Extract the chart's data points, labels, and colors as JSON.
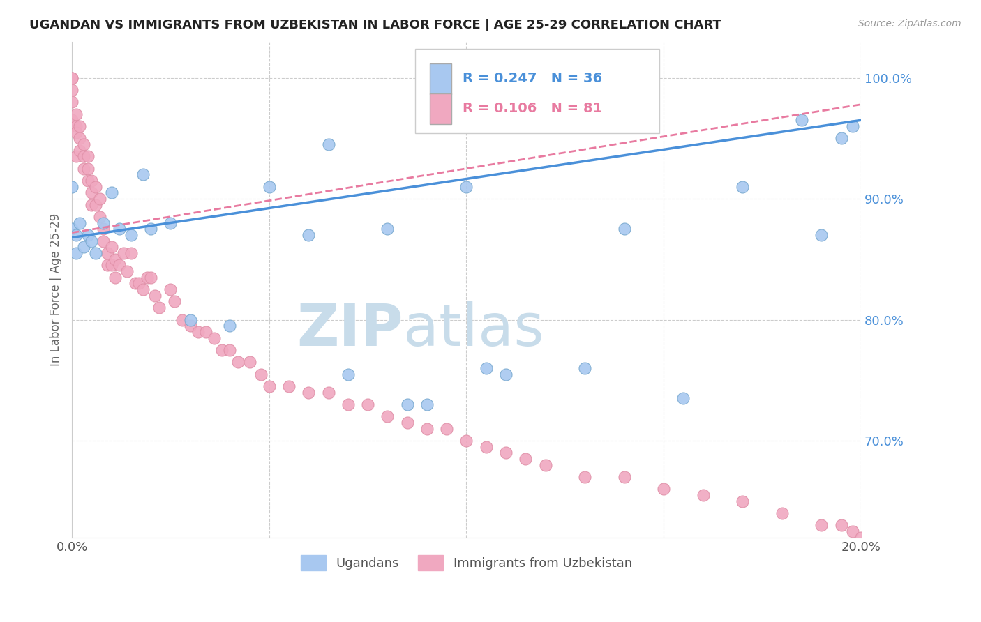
{
  "title": "UGANDAN VS IMMIGRANTS FROM UZBEKISTAN IN LABOR FORCE | AGE 25-29 CORRELATION CHART",
  "source": "Source: ZipAtlas.com",
  "ylabel": "In Labor Force | Age 25-29",
  "xlim": [
    0.0,
    0.2
  ],
  "ylim": [
    0.62,
    1.03
  ],
  "yticks": [
    0.7,
    0.8,
    0.9,
    1.0
  ],
  "ytick_labels": [
    "70.0%",
    "80.0%",
    "90.0%",
    "100.0%"
  ],
  "xticks": [
    0.0,
    0.05,
    0.1,
    0.15,
    0.2
  ],
  "xtick_labels": [
    "0.0%",
    "",
    "",
    "",
    "20.0%"
  ],
  "legend_entries": [
    {
      "label": "Ugandans",
      "color": "#a8c8f0",
      "R": 0.247,
      "N": 36
    },
    {
      "label": "Immigrants from Uzbekistan",
      "color": "#f0a8c0",
      "R": 0.106,
      "N": 81
    }
  ],
  "blue_scatter_x": [
    0.0,
    0.0,
    0.001,
    0.001,
    0.002,
    0.003,
    0.004,
    0.005,
    0.006,
    0.008,
    0.01,
    0.012,
    0.015,
    0.018,
    0.02,
    0.025,
    0.03,
    0.04,
    0.05,
    0.06,
    0.065,
    0.07,
    0.08,
    0.085,
    0.09,
    0.1,
    0.105,
    0.11,
    0.13,
    0.14,
    0.155,
    0.17,
    0.185,
    0.19,
    0.195,
    0.198
  ],
  "blue_scatter_y": [
    0.875,
    0.91,
    0.855,
    0.87,
    0.88,
    0.86,
    0.87,
    0.865,
    0.855,
    0.88,
    0.905,
    0.875,
    0.87,
    0.92,
    0.875,
    0.88,
    0.8,
    0.795,
    0.91,
    0.87,
    0.945,
    0.755,
    0.875,
    0.73,
    0.73,
    0.91,
    0.76,
    0.755,
    0.76,
    0.875,
    0.735,
    0.91,
    0.965,
    0.87,
    0.95,
    0.96
  ],
  "pink_scatter_x": [
    0.0,
    0.0,
    0.0,
    0.0,
    0.0,
    0.001,
    0.001,
    0.001,
    0.001,
    0.002,
    0.002,
    0.002,
    0.003,
    0.003,
    0.003,
    0.004,
    0.004,
    0.004,
    0.005,
    0.005,
    0.005,
    0.006,
    0.006,
    0.007,
    0.007,
    0.008,
    0.008,
    0.009,
    0.009,
    0.01,
    0.01,
    0.011,
    0.011,
    0.012,
    0.013,
    0.014,
    0.015,
    0.016,
    0.017,
    0.018,
    0.019,
    0.02,
    0.021,
    0.022,
    0.025,
    0.026,
    0.028,
    0.03,
    0.032,
    0.034,
    0.036,
    0.038,
    0.04,
    0.042,
    0.045,
    0.048,
    0.05,
    0.055,
    0.06,
    0.065,
    0.07,
    0.075,
    0.08,
    0.085,
    0.09,
    0.095,
    0.1,
    0.105,
    0.11,
    0.115,
    0.12,
    0.13,
    0.14,
    0.15,
    0.16,
    0.17,
    0.18,
    0.19,
    0.195,
    0.198,
    0.2
  ],
  "pink_scatter_y": [
    1.0,
    1.0,
    0.99,
    0.98,
    0.965,
    0.97,
    0.96,
    0.955,
    0.935,
    0.96,
    0.95,
    0.94,
    0.945,
    0.935,
    0.925,
    0.935,
    0.925,
    0.915,
    0.915,
    0.905,
    0.895,
    0.91,
    0.895,
    0.9,
    0.885,
    0.875,
    0.865,
    0.855,
    0.845,
    0.86,
    0.845,
    0.85,
    0.835,
    0.845,
    0.855,
    0.84,
    0.855,
    0.83,
    0.83,
    0.825,
    0.835,
    0.835,
    0.82,
    0.81,
    0.825,
    0.815,
    0.8,
    0.795,
    0.79,
    0.79,
    0.785,
    0.775,
    0.775,
    0.765,
    0.765,
    0.755,
    0.745,
    0.745,
    0.74,
    0.74,
    0.73,
    0.73,
    0.72,
    0.715,
    0.71,
    0.71,
    0.7,
    0.695,
    0.69,
    0.685,
    0.68,
    0.67,
    0.67,
    0.66,
    0.655,
    0.65,
    0.64,
    0.63,
    0.63,
    0.625,
    0.62
  ],
  "blue_line_x": [
    0.0,
    0.2
  ],
  "blue_line_y": [
    0.868,
    0.965
  ],
  "pink_line_x": [
    0.0,
    0.2
  ],
  "pink_line_y": [
    0.872,
    0.978
  ],
  "blue_line_color": "#4a90d9",
  "pink_line_color": "#e87aa0",
  "scatter_blue_color": "#a8c8f0",
  "scatter_pink_color": "#f0a8c0",
  "scatter_blue_edge": "#7aaad0",
  "scatter_pink_edge": "#e090a8",
  "watermark_zip": "ZIP",
  "watermark_atlas": "atlas",
  "watermark_color": "#c8dcea",
  "background_color": "#ffffff",
  "grid_color": "#cccccc"
}
